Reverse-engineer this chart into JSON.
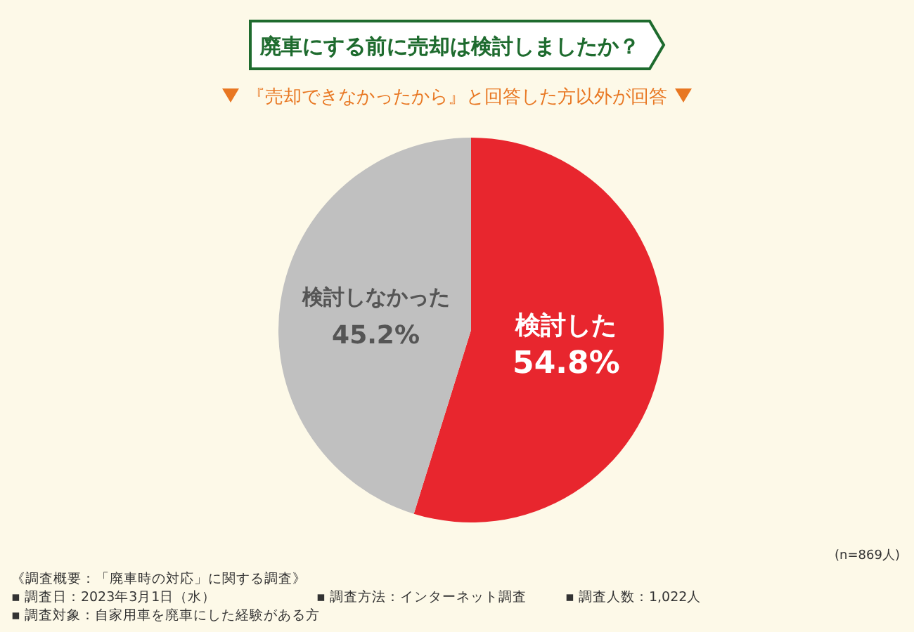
{
  "chart_data": {
    "type": "pie",
    "title": "廃車にする前に売却は検討しましたか？",
    "subtitle": "『売却できなかったから』と回答した方以外が回答",
    "categories": [
      "検討した",
      "検討しなかった"
    ],
    "values": [
      54.8,
      45.2
    ],
    "colors": [
      "#e8262e",
      "#c0c0c0"
    ],
    "value_labels": [
      "54.8%",
      "45.2%"
    ],
    "annotations": [
      "(n=869人)",
      "《調査概要：「廃車時の対応」に関する調査》",
      "▪ 調査日：2023年3月1日（水）",
      "▪ 調査対象：自家用車を廃車にした経験がある方",
      "▪ 調査方法：インターネット調査",
      "▪ 調査人数：1,022人"
    ]
  }
}
